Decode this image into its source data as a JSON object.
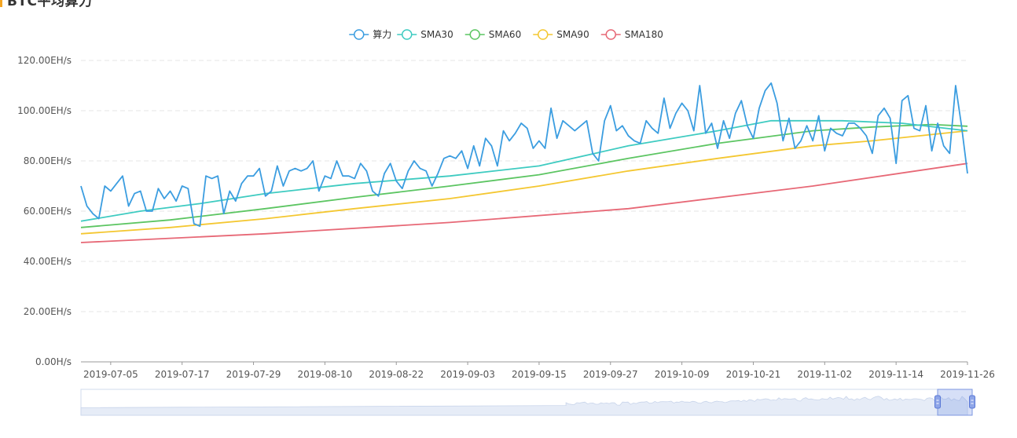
{
  "header": {
    "title": "BTC平均算力",
    "accent_color": "#f5a623"
  },
  "toolbar": {
    "menu_icon": "menu-icon"
  },
  "chart_data": {
    "type": "line",
    "title": "",
    "xlabel": "",
    "ylabel": "",
    "legend_position": "top-center",
    "grid": true,
    "ylim": [
      0,
      120
    ],
    "y_unit": "EH/s",
    "y_ticks": [
      "0.00H/s",
      "20.00EH/s",
      "40.00EH/s",
      "60.00EH/s",
      "80.00EH/s",
      "100.00EH/s",
      "120.00EH/s"
    ],
    "x_start": "2019-06-30",
    "x_end": "2019-11-26",
    "x_ticks": [
      "2019-07-05",
      "2019-07-17",
      "2019-07-29",
      "2019-08-10",
      "2019-08-22",
      "2019-09-03",
      "2019-09-15",
      "2019-09-27",
      "2019-10-09",
      "2019-10-21",
      "2019-11-02",
      "2019-11-14",
      "2019-11-26"
    ],
    "series": [
      {
        "name": "算力",
        "color": "#3b9de0",
        "points": [
          [
            "2019-06-30",
            70
          ],
          [
            "2019-07-01",
            62
          ],
          [
            "2019-07-02",
            59
          ],
          [
            "2019-07-03",
            57
          ],
          [
            "2019-07-04",
            70
          ],
          [
            "2019-07-05",
            68
          ],
          [
            "2019-07-06",
            71
          ],
          [
            "2019-07-07",
            74
          ],
          [
            "2019-07-08",
            62
          ],
          [
            "2019-07-09",
            67
          ],
          [
            "2019-07-10",
            68
          ],
          [
            "2019-07-11",
            60
          ],
          [
            "2019-07-12",
            60
          ],
          [
            "2019-07-13",
            69
          ],
          [
            "2019-07-14",
            65
          ],
          [
            "2019-07-15",
            68
          ],
          [
            "2019-07-16",
            64
          ],
          [
            "2019-07-17",
            70
          ],
          [
            "2019-07-18",
            69
          ],
          [
            "2019-07-19",
            55
          ],
          [
            "2019-07-20",
            54
          ],
          [
            "2019-07-21",
            74
          ],
          [
            "2019-07-22",
            73
          ],
          [
            "2019-07-23",
            74
          ],
          [
            "2019-07-24",
            59
          ],
          [
            "2019-07-25",
            68
          ],
          [
            "2019-07-26",
            64
          ],
          [
            "2019-07-27",
            71
          ],
          [
            "2019-07-28",
            74
          ],
          [
            "2019-07-29",
            74
          ],
          [
            "2019-07-30",
            77
          ],
          [
            "2019-07-31",
            66
          ],
          [
            "2019-08-01",
            68
          ],
          [
            "2019-08-02",
            78
          ],
          [
            "2019-08-03",
            70
          ],
          [
            "2019-08-04",
            76
          ],
          [
            "2019-08-05",
            77
          ],
          [
            "2019-08-06",
            76
          ],
          [
            "2019-08-07",
            77
          ],
          [
            "2019-08-08",
            80
          ],
          [
            "2019-08-09",
            68
          ],
          [
            "2019-08-10",
            74
          ],
          [
            "2019-08-11",
            73
          ],
          [
            "2019-08-12",
            80
          ],
          [
            "2019-08-13",
            74
          ],
          [
            "2019-08-14",
            74
          ],
          [
            "2019-08-15",
            73
          ],
          [
            "2019-08-16",
            79
          ],
          [
            "2019-08-17",
            76
          ],
          [
            "2019-08-18",
            68
          ],
          [
            "2019-08-19",
            66
          ],
          [
            "2019-08-20",
            75
          ],
          [
            "2019-08-21",
            79
          ],
          [
            "2019-08-22",
            72
          ],
          [
            "2019-08-23",
            69
          ],
          [
            "2019-08-24",
            76
          ],
          [
            "2019-08-25",
            80
          ],
          [
            "2019-08-26",
            77
          ],
          [
            "2019-08-27",
            76
          ],
          [
            "2019-08-28",
            70
          ],
          [
            "2019-08-29",
            75
          ],
          [
            "2019-08-30",
            81
          ],
          [
            "2019-08-31",
            82
          ],
          [
            "2019-09-01",
            81
          ],
          [
            "2019-09-02",
            84
          ],
          [
            "2019-09-03",
            77
          ],
          [
            "2019-09-04",
            86
          ],
          [
            "2019-09-05",
            78
          ],
          [
            "2019-09-06",
            89
          ],
          [
            "2019-09-07",
            86
          ],
          [
            "2019-09-08",
            78
          ],
          [
            "2019-09-09",
            92
          ],
          [
            "2019-09-10",
            88
          ],
          [
            "2019-09-11",
            91
          ],
          [
            "2019-09-12",
            95
          ],
          [
            "2019-09-13",
            93
          ],
          [
            "2019-09-14",
            85
          ],
          [
            "2019-09-15",
            88
          ],
          [
            "2019-09-16",
            85
          ],
          [
            "2019-09-17",
            101
          ],
          [
            "2019-09-18",
            89
          ],
          [
            "2019-09-19",
            96
          ],
          [
            "2019-09-20",
            94
          ],
          [
            "2019-09-21",
            92
          ],
          [
            "2019-09-22",
            94
          ],
          [
            "2019-09-23",
            96
          ],
          [
            "2019-09-24",
            83
          ],
          [
            "2019-09-25",
            80
          ],
          [
            "2019-09-26",
            96
          ],
          [
            "2019-09-27",
            102
          ],
          [
            "2019-09-28",
            92
          ],
          [
            "2019-09-29",
            94
          ],
          [
            "2019-09-30",
            90
          ],
          [
            "2019-10-01",
            88
          ],
          [
            "2019-10-02",
            87
          ],
          [
            "2019-10-03",
            96
          ],
          [
            "2019-10-04",
            93
          ],
          [
            "2019-10-05",
            91
          ],
          [
            "2019-10-06",
            105
          ],
          [
            "2019-10-07",
            93
          ],
          [
            "2019-10-08",
            99
          ],
          [
            "2019-10-09",
            103
          ],
          [
            "2019-10-10",
            100
          ],
          [
            "2019-10-11",
            92
          ],
          [
            "2019-10-12",
            110
          ],
          [
            "2019-10-13",
            91
          ],
          [
            "2019-10-14",
            95
          ],
          [
            "2019-10-15",
            85
          ],
          [
            "2019-10-16",
            96
          ],
          [
            "2019-10-17",
            89
          ],
          [
            "2019-10-18",
            99
          ],
          [
            "2019-10-19",
            104
          ],
          [
            "2019-10-20",
            94
          ],
          [
            "2019-10-21",
            89
          ],
          [
            "2019-10-22",
            101
          ],
          [
            "2019-10-23",
            108
          ],
          [
            "2019-10-24",
            111
          ],
          [
            "2019-10-25",
            103
          ],
          [
            "2019-10-26",
            88
          ],
          [
            "2019-10-27",
            97
          ],
          [
            "2019-10-28",
            85
          ],
          [
            "2019-10-29",
            88
          ],
          [
            "2019-10-30",
            94
          ],
          [
            "2019-10-31",
            88
          ],
          [
            "2019-11-01",
            98
          ],
          [
            "2019-11-02",
            84
          ],
          [
            "2019-11-03",
            93
          ],
          [
            "2019-11-04",
            91
          ],
          [
            "2019-11-05",
            90
          ],
          [
            "2019-11-06",
            95
          ],
          [
            "2019-11-07",
            95
          ],
          [
            "2019-11-08",
            93
          ],
          [
            "2019-11-09",
            90
          ],
          [
            "2019-11-10",
            83
          ],
          [
            "2019-11-11",
            98
          ],
          [
            "2019-11-12",
            101
          ],
          [
            "2019-11-13",
            97
          ],
          [
            "2019-11-14",
            79
          ],
          [
            "2019-11-15",
            104
          ],
          [
            "2019-11-16",
            106
          ],
          [
            "2019-11-17",
            93
          ],
          [
            "2019-11-18",
            92
          ],
          [
            "2019-11-19",
            102
          ],
          [
            "2019-11-20",
            84
          ],
          [
            "2019-11-21",
            95
          ],
          [
            "2019-11-22",
            86
          ],
          [
            "2019-11-23",
            83
          ],
          [
            "2019-11-24",
            110
          ],
          [
            "2019-11-25",
            94
          ],
          [
            "2019-11-26",
            75
          ]
        ]
      },
      {
        "name": "SMA30",
        "color": "#3ecbc1",
        "points": [
          [
            "2019-06-30",
            56
          ],
          [
            "2019-07-10",
            60
          ],
          [
            "2019-07-20",
            63
          ],
          [
            "2019-07-31",
            67
          ],
          [
            "2019-08-15",
            71
          ],
          [
            "2019-08-31",
            74
          ],
          [
            "2019-09-15",
            78
          ],
          [
            "2019-09-30",
            86
          ],
          [
            "2019-10-15",
            92
          ],
          [
            "2019-10-24",
            96
          ],
          [
            "2019-11-05",
            96
          ],
          [
            "2019-11-15",
            95
          ],
          [
            "2019-11-26",
            92
          ]
        ]
      },
      {
        "name": "SMA60",
        "color": "#5cc562",
        "points": [
          [
            "2019-06-30",
            53.5
          ],
          [
            "2019-07-15",
            56.5
          ],
          [
            "2019-07-31",
            61
          ],
          [
            "2019-08-15",
            65.5
          ],
          [
            "2019-08-31",
            70
          ],
          [
            "2019-09-15",
            74.5
          ],
          [
            "2019-09-30",
            81
          ],
          [
            "2019-10-15",
            87
          ],
          [
            "2019-10-31",
            92
          ],
          [
            "2019-11-10",
            93.5
          ],
          [
            "2019-11-20",
            94.5
          ],
          [
            "2019-11-26",
            93.8
          ]
        ]
      },
      {
        "name": "SMA90",
        "color": "#f4c731",
        "points": [
          [
            "2019-06-30",
            51
          ],
          [
            "2019-07-15",
            53.5
          ],
          [
            "2019-07-31",
            57
          ],
          [
            "2019-08-15",
            61
          ],
          [
            "2019-08-31",
            65
          ],
          [
            "2019-09-15",
            70
          ],
          [
            "2019-09-30",
            76
          ],
          [
            "2019-10-15",
            81
          ],
          [
            "2019-10-31",
            86
          ],
          [
            "2019-11-10",
            88
          ],
          [
            "2019-11-20",
            90.5
          ],
          [
            "2019-11-26",
            92
          ]
        ]
      },
      {
        "name": "SMA180",
        "color": "#e76876",
        "points": [
          [
            "2019-06-30",
            47.5
          ],
          [
            "2019-07-31",
            51
          ],
          [
            "2019-08-31",
            55.5
          ],
          [
            "2019-09-30",
            61
          ],
          [
            "2019-10-31",
            70
          ],
          [
            "2019-11-26",
            79
          ]
        ]
      }
    ]
  }
}
